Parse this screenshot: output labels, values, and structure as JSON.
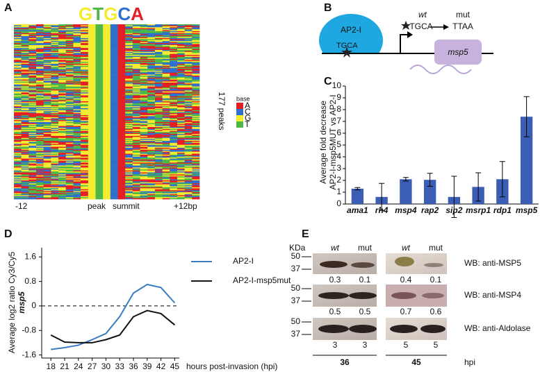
{
  "panels": [
    "A",
    "B",
    "C",
    "D",
    "E"
  ],
  "heatmap": {
    "motif": "GTGCA",
    "legend_title": "base",
    "bases": [
      "A",
      "C",
      "G",
      "T"
    ],
    "colors": [
      "#e51e25",
      "#2f6fcf",
      "#f3ec2f",
      "#4db848"
    ],
    "count_label": "177 peaks",
    "x_labels": [
      "-12",
      "peak",
      "summit",
      "+12bp"
    ]
  },
  "diagram": {
    "protein": "AP2-I",
    "site": "TGCA",
    "wt": "wt",
    "mut": "mut",
    "wt_seq": "TGCA",
    "mut_seq": "TTAA",
    "gene": "msp5"
  },
  "blot": {
    "unit": "KDa",
    "markers": [
      "50",
      "37"
    ],
    "lanes": [
      "wt",
      "mut",
      "wt",
      "mut"
    ],
    "rows": [
      {
        "label": "WB: anti-MSP5",
        "quant": [
          "0.3",
          "0.1",
          "0.4",
          "0.1"
        ]
      },
      {
        "label": "WB: anti-MSP4",
        "quant": [
          "0.5",
          "0.5",
          "0.7",
          "0.6"
        ]
      },
      {
        "label": "WB: anti-Aldolase",
        "quant": [
          "3",
          "3",
          "5",
          "5"
        ]
      }
    ],
    "timepoints": [
      "36",
      "45"
    ],
    "time_unit": "hpi"
  },
  "chart_data": [
    {
      "type": "bar",
      "y_label": [
        "Average fold decrease",
        "AP2-I-msp5MUT vs AP2-I"
      ],
      "categories": [
        "ama1",
        "rh4",
        "msp4",
        "rap2",
        "sip2",
        "msrp1",
        "rdp1",
        "msp5"
      ],
      "values": [
        1.3,
        0.6,
        2.1,
        2.05,
        0.6,
        1.45,
        2.1,
        7.4
      ],
      "errors": [
        0.1,
        1.15,
        0.15,
        0.55,
        1.75,
        1.2,
        1.5,
        1.7
      ],
      "color": "#3b5db3",
      "ylim": [
        0,
        10
      ],
      "yticks": [
        0,
        1,
        2,
        3,
        4,
        5,
        6,
        7,
        8,
        9,
        10
      ]
    },
    {
      "type": "line",
      "x_label": "hours post-invasion (hpi)",
      "y_label": [
        "Average log2 ratio Cy3/Cy5",
        "msp5"
      ],
      "x": [
        18,
        21,
        24,
        27,
        30,
        33,
        36,
        39,
        42,
        45
      ],
      "series": [
        {
          "name": "AP2-I",
          "color": "#3a7cc4",
          "values": [
            -1.42,
            -1.36,
            -1.28,
            -1.1,
            -0.9,
            -0.35,
            0.42,
            0.7,
            0.6,
            0.1
          ]
        },
        {
          "name": "AP2-I-msp5mut",
          "color": "#111111",
          "values": [
            -0.95,
            -1.18,
            -1.2,
            -1.2,
            -1.1,
            -0.95,
            -0.35,
            -0.15,
            -0.25,
            -0.62
          ]
        }
      ],
      "xlim": [
        16,
        46
      ],
      "xticks": [
        18,
        21,
        24,
        27,
        30,
        33,
        36,
        39,
        42,
        45
      ],
      "ylim": [
        -1.7,
        1.9
      ],
      "yticks": [
        -1.6,
        -0.8,
        0,
        0.8,
        1.6
      ],
      "reference_line": 0,
      "legend": "right"
    }
  ]
}
